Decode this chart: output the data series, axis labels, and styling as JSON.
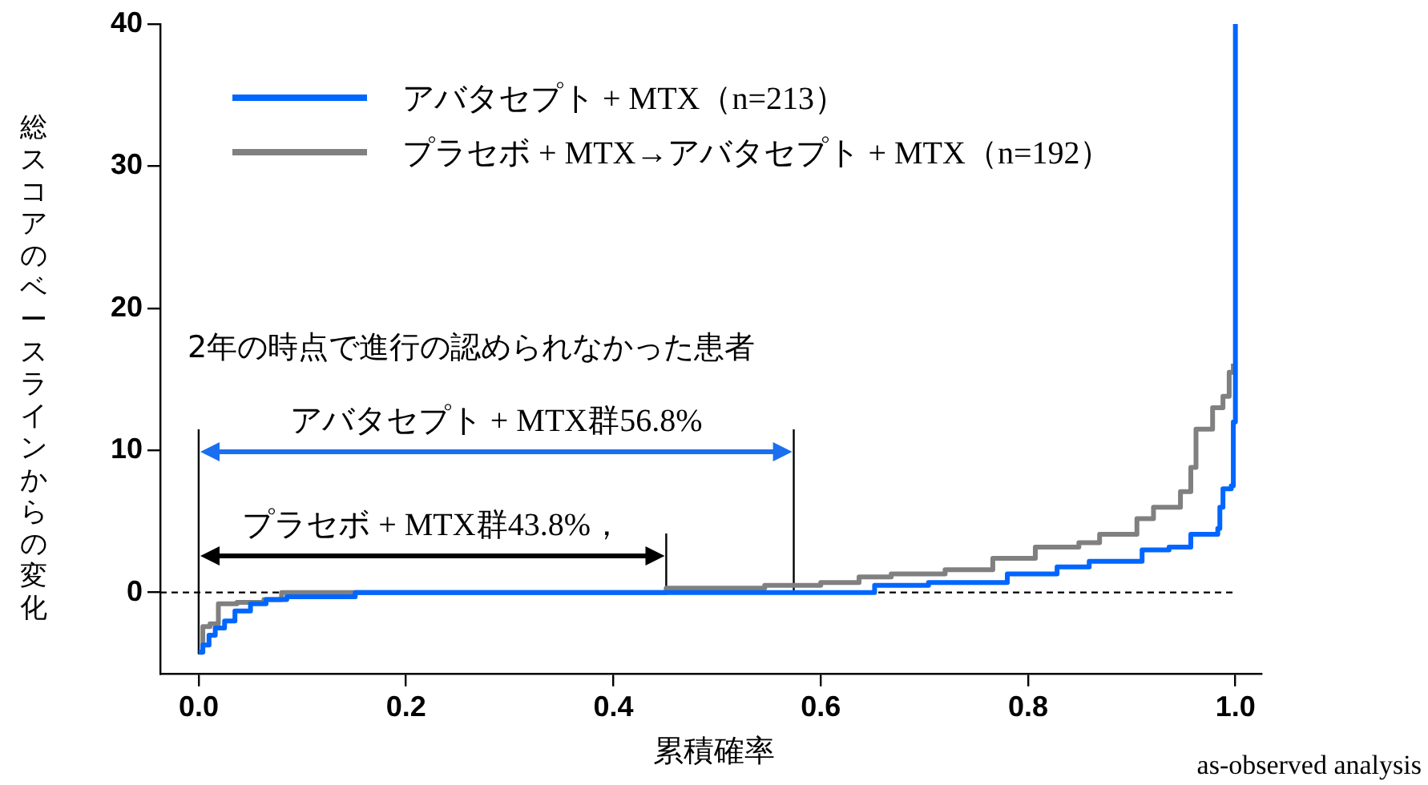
{
  "chart_data": {
    "type": "step",
    "xlabel": "累積確率",
    "ylabel": "総スコアのベースラインからの変化",
    "xlim": [
      -0.037,
      1.025
    ],
    "xticks": [
      {
        "value": 0,
        "label": "0.0"
      },
      {
        "value": 0.2,
        "label": "0.2"
      },
      {
        "value": 0.4,
        "label": "0.4"
      },
      {
        "value": 0.6,
        "label": "0.6"
      },
      {
        "value": 0.8,
        "label": "0.8"
      },
      {
        "value": 1,
        "label": "1.0"
      }
    ],
    "ylim": [
      -5.7,
      40
    ],
    "yticks": [
      0,
      10,
      20,
      30,
      40
    ],
    "grid": false,
    "legend": "top left",
    "ref_lines": [
      {
        "axis": "y",
        "value": 0,
        "line_style": "dashed",
        "color": "#000000"
      },
      {
        "axis": "x",
        "value": 0,
        "color": "#000000"
      },
      {
        "axis": "x",
        "value": 0.574,
        "label": "アバタセプト + MTX群56.8%",
        "color": "#000000"
      },
      {
        "axis": "x",
        "value": 0.451,
        "label": "プラセボ + MTX群43.8%，",
        "color": "#000000"
      }
    ],
    "annotations": [
      "2年の時点で進行の認められなかった患者",
      "as-observed analysis"
    ],
    "series": [
      {
        "name": "アバタセプト + MTX（n=213）",
        "color": "#0066ff",
        "x": [
          0,
          0.004,
          0.01,
          0.016,
          0.025,
          0.035,
          0.05,
          0.065,
          0.085,
          0.151,
          0.652,
          0.704,
          0.78,
          0.828,
          0.859,
          0.91,
          0.936,
          0.957,
          0.983,
          0.985,
          0.988,
          0.996,
          0.998,
          1.0
        ],
        "values": [
          -4.2,
          -3.7,
          -3.0,
          -2.5,
          -2.0,
          -1.3,
          -0.8,
          -0.5,
          -0.3,
          0,
          0.5,
          0.7,
          1.3,
          1.8,
          2.2,
          3.0,
          3.2,
          4.1,
          4.5,
          6.0,
          7.3,
          7.5,
          12.0,
          40
        ]
      },
      {
        "name": "プラセボ + MTX→アバタセプト + MTX（n=192）",
        "color": "#808080",
        "x": [
          0,
          0.004,
          0.011,
          0.019,
          0.037,
          0.063,
          0.08,
          0.451,
          0.546,
          0.6,
          0.637,
          0.668,
          0.72,
          0.766,
          0.807,
          0.849,
          0.869,
          0.905,
          0.921,
          0.947,
          0.957,
          0.962,
          0.978,
          0.988,
          0.994,
          0.998
        ],
        "values": [
          -4.2,
          -2.4,
          -2.2,
          -0.8,
          -0.7,
          -0.5,
          0,
          0.3,
          0.5,
          0.7,
          1.1,
          1.3,
          1.6,
          2.4,
          3.2,
          3.5,
          4.1,
          5.2,
          6.0,
          7.1,
          8.8,
          11.5,
          13.0,
          13.8,
          15.5,
          16.1
        ]
      }
    ]
  }
}
